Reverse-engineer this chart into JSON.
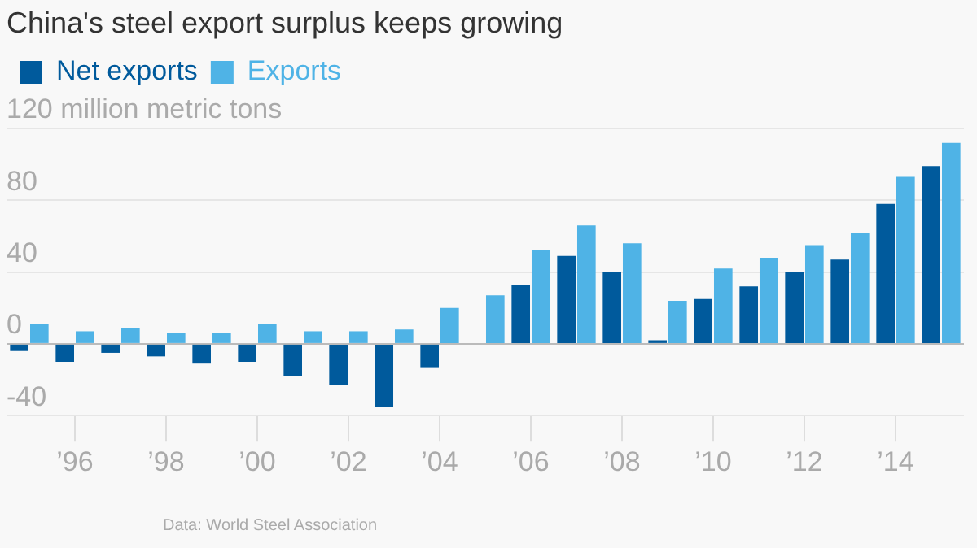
{
  "chart_data": {
    "type": "bar",
    "title": "China's steel export surplus keeps growing",
    "categories": [
      null,
      "’96",
      null,
      "’98",
      null,
      "’00",
      null,
      "’02",
      null,
      "’04",
      null,
      "’06",
      null,
      "’08",
      null,
      "’10",
      null,
      "’12",
      null,
      "’14",
      null
    ],
    "series": [
      {
        "name": "Net exports",
        "color": "#005a9c",
        "values": [
          -4,
          -10,
          -5,
          -7,
          -11,
          -10,
          -18,
          -23,
          -35,
          -13,
          null,
          33,
          49,
          40,
          2,
          25,
          32,
          40,
          47,
          78,
          99
        ]
      },
      {
        "name": "Exports",
        "color": "#4fb3e6",
        "values": [
          11,
          7,
          9,
          6,
          6,
          11,
          7,
          7,
          8,
          20,
          27,
          52,
          66,
          56,
          24,
          42,
          48,
          55,
          62,
          93,
          112
        ]
      }
    ],
    "ylim": [
      -40,
      120
    ],
    "yticks": [
      -40,
      0,
      40,
      80,
      {
        "value": 120,
        "label": "120 million metric tons"
      }
    ],
    "grid": "y",
    "legend": "top left",
    "annotations": [
      "Data: World Steel Association"
    ]
  }
}
